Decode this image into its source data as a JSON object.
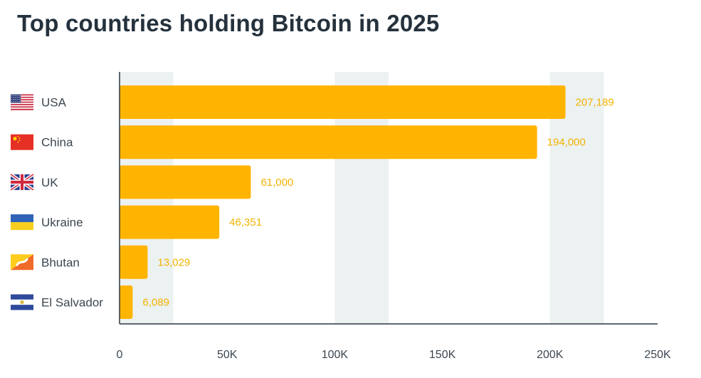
{
  "chart_data": {
    "type": "bar",
    "orientation": "horizontal",
    "title": "Top countries holding Bitcoin in 2025",
    "categories": [
      "USA",
      "China",
      "UK",
      "Ukraine",
      "Bhutan",
      "El Salvador"
    ],
    "flag_icons": [
      "usa-flag-icon",
      "china-flag-icon",
      "uk-flag-icon",
      "ukraine-flag-icon",
      "bhutan-flag-icon",
      "el-salvador-flag-icon"
    ],
    "values": [
      207189,
      194000,
      61000,
      46351,
      13029,
      6089
    ],
    "value_labels": [
      "207,189",
      "194,000",
      "61,000",
      "46,351",
      "13,029",
      "6,089"
    ],
    "xlim": [
      0,
      250000
    ],
    "x_ticks": [
      0,
      50000,
      100000,
      150000,
      200000,
      250000
    ],
    "x_tick_labels": [
      "0",
      "50K",
      "100K",
      "150K",
      "200K",
      "250K"
    ],
    "xlabel": "",
    "ylabel": "",
    "bar_color": "#ffb400",
    "value_label_color": "#f2b300",
    "band_color": "#ecf1f2",
    "grid": "alternating vertical bands"
  }
}
